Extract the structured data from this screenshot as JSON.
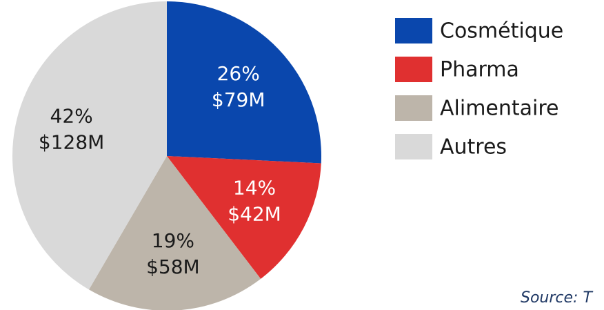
{
  "chart_data": {
    "type": "pie",
    "categories": [
      "Cosmétique",
      "Pharma",
      "Alimentaire",
      "Autres"
    ],
    "values": [
      26,
      14,
      19,
      42
    ],
    "value_labels": [
      "26%",
      "14%",
      "19%",
      "42%"
    ],
    "amount_labels": [
      "$79M",
      "$42M",
      "$58M",
      "$128M"
    ],
    "colors": [
      "#0a47ad",
      "#e03030",
      "#bdb5aa",
      "#d9d9d9"
    ],
    "label_colors": [
      "#ffffff",
      "#ffffff",
      "#1a1a1a",
      "#1a1a1a"
    ],
    "legend": "right",
    "source": "Source: T"
  }
}
